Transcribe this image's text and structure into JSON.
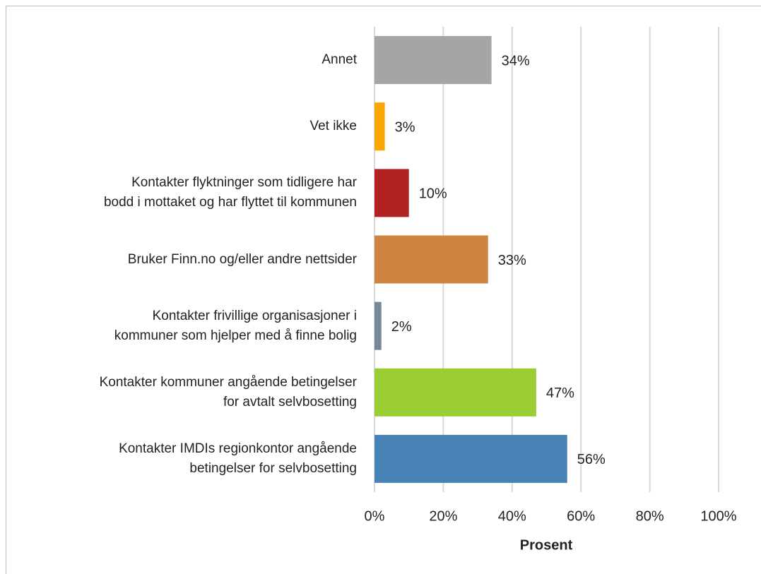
{
  "chart_data": {
    "type": "barh",
    "categories": [
      "Annet",
      "Vet ikke",
      "Kontakter flyktninger som tidligere har\nbodd i mottaket og har flyttet til kommunen",
      "Bruker Finn.no og/eller andre nettsider",
      "Kontakter frivillige organisasjoner i\nkommuner som hjelper med å finne bolig",
      "Kontakter kommuner angående betingelser\nfor avtalt selvbosetting",
      "Kontakter IMDIs regionkontor angående\nbetingelser for selvbosetting"
    ],
    "values": [
      34,
      3,
      10,
      33,
      2,
      47,
      56
    ],
    "value_labels": [
      "34%",
      "3%",
      "10%",
      "33%",
      "2%",
      "47%",
      "56%"
    ],
    "colors": [
      "#a5a5a5",
      "#f9a602",
      "#b22222",
      "#cd853f",
      "#778899",
      "#9acd32",
      "#4682b4"
    ],
    "xlabel": "Prosent",
    "xlim": [
      0,
      100
    ],
    "xticks": [
      {
        "value": 0,
        "label": "0%"
      },
      {
        "value": 20,
        "label": "20%"
      },
      {
        "value": 40,
        "label": "40%"
      },
      {
        "value": 60,
        "label": "60%"
      },
      {
        "value": 80,
        "label": "80%"
      },
      {
        "value": 100,
        "label": "100%"
      }
    ],
    "grid": true
  }
}
